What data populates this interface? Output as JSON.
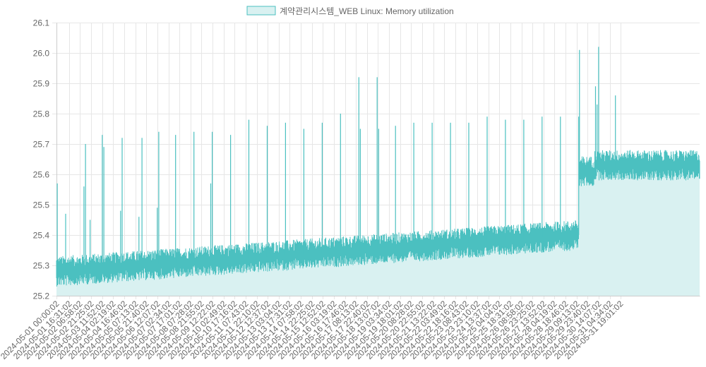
{
  "chart_data": {
    "type": "area",
    "legend": {
      "position": "top",
      "entries": [
        {
          "label": "계약관리시스템_WEB Linux: Memory utilization"
        }
      ]
    },
    "colors": {
      "line": "#4bc0c0",
      "fill": "#d9f1f1",
      "grid": "#e6e6e6",
      "tick_text": "#666666"
    },
    "grid": true,
    "y_axis": {
      "ticks": [
        "26.1",
        "26.0",
        "25.9",
        "25.8",
        "25.7",
        "25.6",
        "25.5",
        "25.4",
        "25.3",
        "25.2"
      ],
      "min": 25.2,
      "max": 26.1
    },
    "x_axis": {
      "tick_labels": [
        "2024-05-01 00:00:02",
        "2024-05-01 16:31:02",
        "2024-05-02 06:58:02",
        "2024-05-02 21:25:02",
        "2024-05-03 11:52:02",
        "2024-05-04 02:19:02",
        "2024-05-04 16:46:02",
        "2024-05-05 07:13:02",
        "2024-05-05 21:40:02",
        "2024-05-06 12:07:02",
        "2024-05-07 02:34:02",
        "2024-05-07 17:01:02",
        "2024-05-08 07:28:02",
        "2024-05-08 21:55:02",
        "2024-05-09 12:22:02",
        "2024-05-10 02:49:02",
        "2024-05-10 17:16:02",
        "2024-05-11 07:43:02",
        "2024-05-11 22:10:02",
        "2024-05-12 12:37:02",
        "2024-05-13 03:04:02",
        "2024-05-13 17:31:02",
        "2024-05-14 07:58:02",
        "2024-05-14 22:25:02",
        "2024-05-15 12:52:02",
        "2024-05-16 03:19:02",
        "2024-05-16 17:46:02",
        "2024-05-17 08:13:02",
        "2024-05-17 22:40:02",
        "2024-05-18 13:07:02",
        "2024-05-19 03:34:02",
        "2024-05-19 18:01:02",
        "2024-05-20 08:28:02",
        "2024-05-20 22:55:02",
        "2024-05-21 13:22:02",
        "2024-05-22 03:49:02",
        "2024-05-22 18:16:02",
        "2024-05-23 08:43:02",
        "2024-05-23 23:10:02",
        "2024-05-24 13:37:02",
        "2024-05-25 04:04:02",
        "2024-05-25 18:31:02",
        "2024-05-26 08:58:02",
        "2024-05-26 23:25:02",
        "2024-05-27 13:52:02",
        "2024-05-28 04:19:02",
        "2024-05-28 18:46:02",
        "2024-05-29 09:13:02",
        "2024-05-29 23:40:02",
        "2024-05-30 14:07:02",
        "2024-05-31 04:34:02",
        "2024-05-31 19:01:02"
      ]
    },
    "series": [
      {
        "name": "계약관리시스템_WEB Linux: Memory utilization",
        "baseline_segments": [
          {
            "from": "2024-05-01 00:00:02",
            "to": "2024-05-29 12:00:00",
            "start": 25.28,
            "end": 25.4,
            "noise_band": 0.05
          },
          {
            "from": "2024-05-29 12:00:00",
            "to": "2024-05-30 09:00:00",
            "start": 25.61,
            "end": 25.61,
            "noise_band": 0.05
          },
          {
            "from": "2024-05-30 09:00:00",
            "to": "2024-05-31 23:59:00",
            "start": 25.63,
            "end": 25.63,
            "noise_band": 0.05
          }
        ],
        "spikes": [
          {
            "x": "2024-05-01 01:00:00",
            "y": 25.57
          },
          {
            "x": "2024-05-01 12:00:00",
            "y": 25.47
          },
          {
            "x": "2024-05-02 12:00:00",
            "y": 25.56
          },
          {
            "x": "2024-05-02 14:00:00",
            "y": 25.7
          },
          {
            "x": "2024-05-02 20:00:00",
            "y": 25.45
          },
          {
            "x": "2024-05-03 12:00:00",
            "y": 25.73
          },
          {
            "x": "2024-05-03 14:00:00",
            "y": 25.69
          },
          {
            "x": "2024-05-04 12:00:00",
            "y": 25.48
          },
          {
            "x": "2024-05-04 14:00:00",
            "y": 25.72
          },
          {
            "x": "2024-05-05 12:00:00",
            "y": 25.46
          },
          {
            "x": "2024-05-05 16:00:00",
            "y": 25.72
          },
          {
            "x": "2024-05-06 12:00:00",
            "y": 25.49
          },
          {
            "x": "2024-05-06 14:00:00",
            "y": 25.74
          },
          {
            "x": "2024-05-07 12:00:00",
            "y": 25.73
          },
          {
            "x": "2024-05-08 12:00:00",
            "y": 25.74
          },
          {
            "x": "2024-05-09 10:00:00",
            "y": 25.57
          },
          {
            "x": "2024-05-09 12:00:00",
            "y": 25.74
          },
          {
            "x": "2024-05-10 12:00:00",
            "y": 25.73
          },
          {
            "x": "2024-05-11 12:00:00",
            "y": 25.78
          },
          {
            "x": "2024-05-12 12:00:00",
            "y": 25.76
          },
          {
            "x": "2024-05-13 12:00:00",
            "y": 25.77
          },
          {
            "x": "2024-05-14 12:00:00",
            "y": 25.75
          },
          {
            "x": "2024-05-15 12:00:00",
            "y": 25.77
          },
          {
            "x": "2024-05-16 12:00:00",
            "y": 25.8
          },
          {
            "x": "2024-05-17 12:00:00",
            "y": 25.92
          },
          {
            "x": "2024-05-17 14:00:00",
            "y": 25.75
          },
          {
            "x": "2024-05-18 12:00:00",
            "y": 25.92
          },
          {
            "x": "2024-05-18 14:00:00",
            "y": 25.75
          },
          {
            "x": "2024-05-19 12:00:00",
            "y": 25.76
          },
          {
            "x": "2024-05-20 12:00:00",
            "y": 25.77
          },
          {
            "x": "2024-05-21 12:00:00",
            "y": 25.77
          },
          {
            "x": "2024-05-22 12:00:00",
            "y": 25.77
          },
          {
            "x": "2024-05-23 12:00:00",
            "y": 25.77
          },
          {
            "x": "2024-05-24 12:00:00",
            "y": 25.79
          },
          {
            "x": "2024-05-25 12:00:00",
            "y": 25.78
          },
          {
            "x": "2024-05-26 12:00:00",
            "y": 25.78
          },
          {
            "x": "2024-05-27 12:00:00",
            "y": 25.79
          },
          {
            "x": "2024-05-28 12:00:00",
            "y": 25.79
          },
          {
            "x": "2024-05-29 12:00:00",
            "y": 25.79
          },
          {
            "x": "2024-05-29 13:00:00",
            "y": 26.01
          },
          {
            "x": "2024-05-30 10:00:00",
            "y": 25.89
          },
          {
            "x": "2024-05-30 12:00:00",
            "y": 25.83
          },
          {
            "x": "2024-05-30 14:00:00",
            "y": 26.02
          },
          {
            "x": "2024-05-31 12:00:00",
            "y": 25.86
          }
        ]
      }
    ]
  }
}
